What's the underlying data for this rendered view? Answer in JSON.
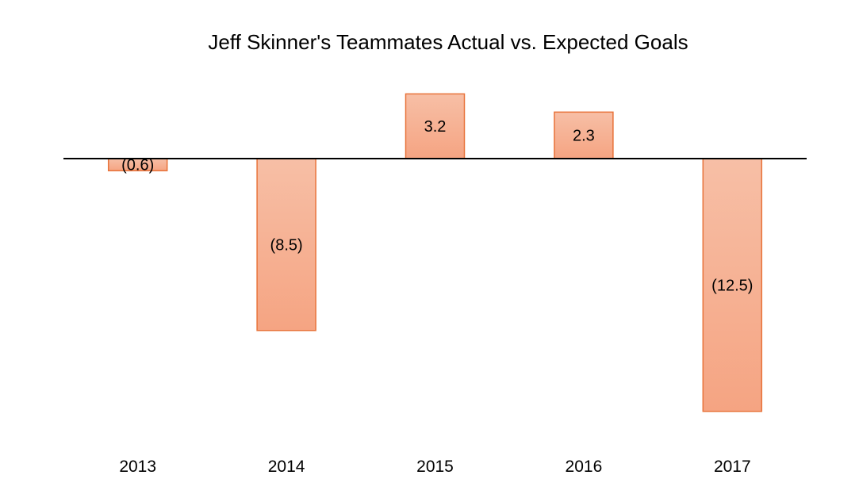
{
  "chart_data": {
    "type": "bar",
    "title": "Jeff Skinner's Teammates Actual vs. Expected Goals",
    "xlabel": "",
    "ylabel": "",
    "categories": [
      "2013",
      "2014",
      "2015",
      "2016",
      "2017"
    ],
    "values": [
      -0.6,
      -8.5,
      3.2,
      2.3,
      -12.5
    ],
    "data_labels": [
      "(0.6)",
      "(8.5)",
      "3.2",
      "2.3",
      "(12.5)"
    ],
    "ylim": [
      -14,
      4.5
    ],
    "grid": false,
    "legend": "none",
    "colors": {
      "bar_fill_top": "#f7bfa6",
      "bar_fill_bottom": "#f5a482",
      "bar_stroke": "#e8733a",
      "zero_line": "#000000"
    }
  }
}
